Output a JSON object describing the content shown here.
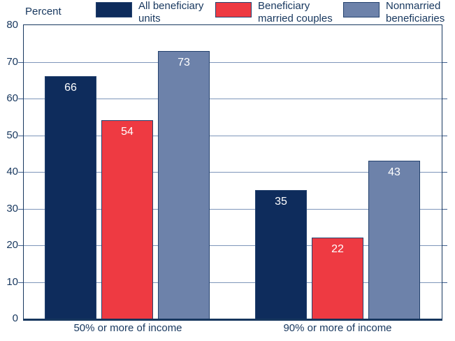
{
  "chart_data": {
    "type": "bar",
    "title": "",
    "ylabel": "Percent",
    "xlabel": "",
    "categories": [
      "50% or more of income",
      "90% or more of income"
    ],
    "series": [
      {
        "name": "All beneficiary units",
        "color": "#0e2c5c",
        "values": [
          66,
          35
        ]
      },
      {
        "name": "Beneficiary married couples",
        "color": "#ee3a42",
        "values": [
          54,
          22
        ]
      },
      {
        "name": "Nonmarried beneficiaries",
        "color": "#6d82aa",
        "values": [
          73,
          43
        ]
      }
    ],
    "ylim": [
      0,
      80
    ],
    "yticks": [
      0,
      10,
      20,
      30,
      40,
      50,
      60,
      70,
      80
    ],
    "grid": true,
    "legend_position": "top",
    "value_labels": true
  },
  "legend": {
    "items": [
      {
        "line1": "All beneficiary",
        "line2": "units"
      },
      {
        "line1": "Beneficiary",
        "line2": "married couples"
      },
      {
        "line1": "Nonmarried",
        "line2": "beneficiaries"
      }
    ]
  },
  "colors": {
    "text": "#17375e",
    "axis": "#17375e",
    "gridline": "#7e96ba",
    "bar_border": "#24426e",
    "value_label": "#ffffff",
    "background": "#ffffff"
  }
}
